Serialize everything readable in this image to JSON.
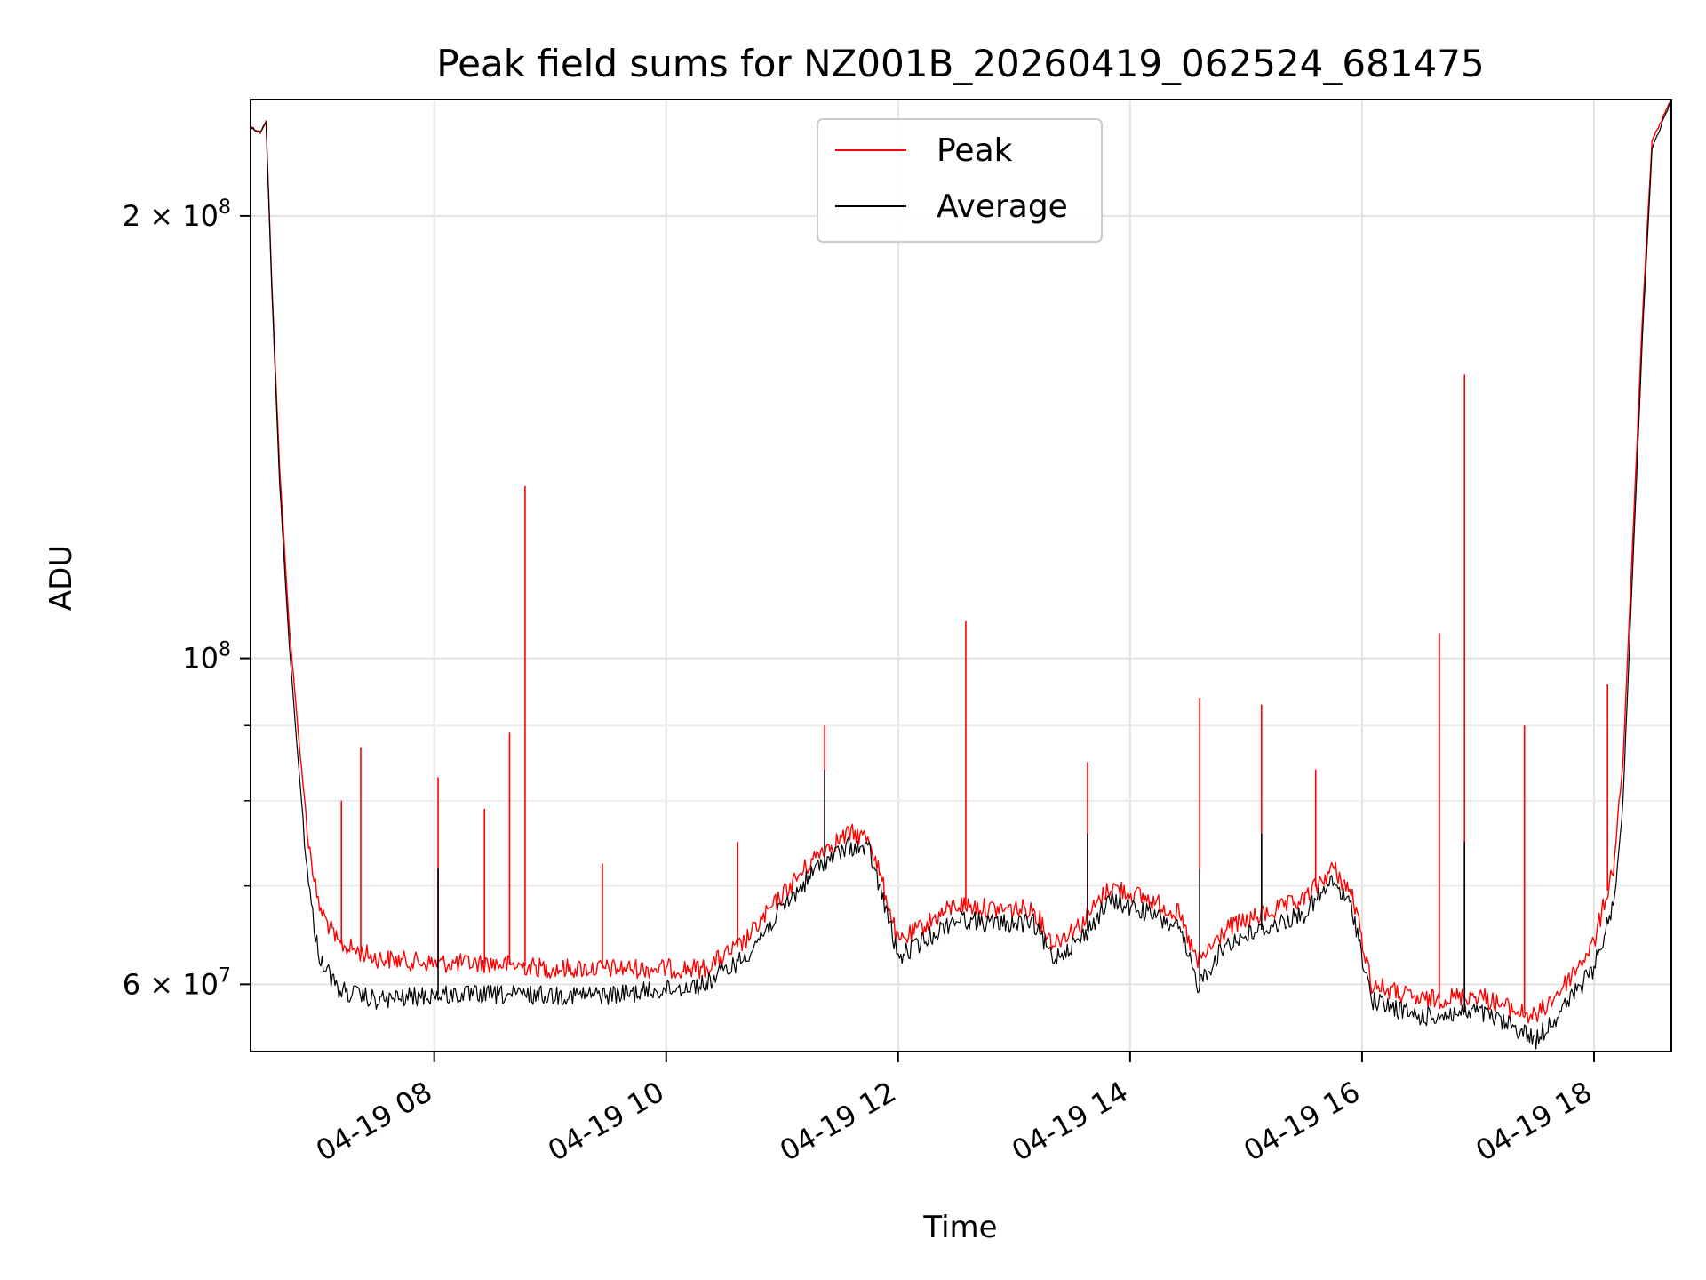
{
  "chart_data": {
    "type": "line",
    "title": "Peak field sums for NZ001B_20260419_062524_681475",
    "xlabel": "Time",
    "ylabel": "ADU",
    "y_scale": "log",
    "ylim": [
      54000000,
      240000000
    ],
    "xlim": [
      "2026-04-19 06:25",
      "2026-04-19 18:40"
    ],
    "x_ticks": [
      {
        "x": "2026-04-19 08:00",
        "label": "04-19 08"
      },
      {
        "x": "2026-04-19 10:00",
        "label": "04-19 10"
      },
      {
        "x": "2026-04-19 12:00",
        "label": "04-19 12"
      },
      {
        "x": "2026-04-19 14:00",
        "label": "04-19 14"
      },
      {
        "x": "2026-04-19 16:00",
        "label": "04-19 16"
      },
      {
        "x": "2026-04-19 18:00",
        "label": "04-19 18"
      }
    ],
    "y_ticks": [
      {
        "y": 60000000,
        "label_base": "6 × 10",
        "label_exp": "7"
      },
      {
        "y": 100000000,
        "label_base": "10",
        "label_exp": "8"
      },
      {
        "y": 200000000,
        "label_base": "2 × 10",
        "label_exp": "8"
      }
    ],
    "y_minor_ticks": [
      70000000,
      80000000,
      90000000
    ],
    "grid": true,
    "legend_position": "top-center",
    "series": [
      {
        "name": "Peak",
        "color": "#ff0000",
        "points": [
          [
            "2026-04-19 06:25",
            230000000
          ],
          [
            "2026-04-19 06:30",
            228000000
          ],
          [
            "2026-04-19 06:33",
            232000000
          ],
          [
            "2026-04-19 06:36",
            180000000
          ],
          [
            "2026-04-19 06:40",
            135000000
          ],
          [
            "2026-04-19 06:45",
            105000000
          ],
          [
            "2026-04-19 06:50",
            88000000
          ],
          [
            "2026-04-19 06:55",
            75000000
          ],
          [
            "2026-04-19 07:00",
            68000000
          ],
          [
            "2026-04-19 07:10",
            64000000
          ],
          [
            "2026-04-19 07:30",
            62500000
          ],
          [
            "2026-04-19 08:00",
            62000000
          ],
          [
            "2026-04-19 08:30",
            62000000
          ],
          [
            "2026-04-19 09:00",
            61500000
          ],
          [
            "2026-04-19 09:30",
            61500000
          ],
          [
            "2026-04-19 10:00",
            61500000
          ],
          [
            "2026-04-19 10:20",
            61500000
          ],
          [
            "2026-04-19 10:40",
            64000000
          ],
          [
            "2026-04-19 11:00",
            69000000
          ],
          [
            "2026-04-19 11:20",
            74000000
          ],
          [
            "2026-04-19 11:35",
            76000000
          ],
          [
            "2026-04-19 11:45",
            75500000
          ],
          [
            "2026-04-19 11:55",
            68000000
          ],
          [
            "2026-04-19 12:00",
            64000000
          ],
          [
            "2026-04-19 12:15",
            66000000
          ],
          [
            "2026-04-19 12:30",
            68000000
          ],
          [
            "2026-04-19 12:50",
            67500000
          ],
          [
            "2026-04-19 13:10",
            67500000
          ],
          [
            "2026-04-19 13:20",
            64000000
          ],
          [
            "2026-04-19 13:35",
            66000000
          ],
          [
            "2026-04-19 13:50",
            70000000
          ],
          [
            "2026-04-19 14:10",
            68500000
          ],
          [
            "2026-04-19 14:25",
            67000000
          ],
          [
            "2026-04-19 14:35",
            62000000
          ],
          [
            "2026-04-19 14:50",
            65500000
          ],
          [
            "2026-04-19 15:10",
            67000000
          ],
          [
            "2026-04-19 15:30",
            68500000
          ],
          [
            "2026-04-19 15:45",
            72000000
          ],
          [
            "2026-04-19 15:55",
            69000000
          ],
          [
            "2026-04-19 16:05",
            60000000
          ],
          [
            "2026-04-19 16:30",
            58500000
          ],
          [
            "2026-04-19 17:00",
            59000000
          ],
          [
            "2026-04-19 17:20",
            57500000
          ],
          [
            "2026-04-19 17:30",
            57000000
          ],
          [
            "2026-04-19 17:45",
            60000000
          ],
          [
            "2026-04-19 18:00",
            64000000
          ],
          [
            "2026-04-19 18:10",
            72000000
          ],
          [
            "2026-04-19 18:15",
            85000000
          ],
          [
            "2026-04-19 18:20",
            120000000
          ],
          [
            "2026-04-19 18:25",
            170000000
          ],
          [
            "2026-04-19 18:30",
            225000000
          ],
          [
            "2026-04-19 18:40",
            240000000
          ]
        ],
        "spikes": [
          [
            "2026-04-19 07:12",
            80000000
          ],
          [
            "2026-04-19 07:22",
            87000000
          ],
          [
            "2026-04-19 08:02",
            83000000
          ],
          [
            "2026-04-19 08:26",
            79000000
          ],
          [
            "2026-04-19 08:39",
            89000000
          ],
          [
            "2026-04-19 08:47",
            131000000
          ],
          [
            "2026-04-19 09:27",
            72500000
          ],
          [
            "2026-04-19 10:37",
            75000000
          ],
          [
            "2026-04-19 11:22",
            90000000
          ],
          [
            "2026-04-19 12:35",
            106000000
          ],
          [
            "2026-04-19 13:38",
            85000000
          ],
          [
            "2026-04-19 14:36",
            94000000
          ],
          [
            "2026-04-19 15:08",
            93000000
          ],
          [
            "2026-04-19 15:36",
            84000000
          ],
          [
            "2026-04-19 16:40",
            104000000
          ],
          [
            "2026-04-19 16:53",
            156000000
          ],
          [
            "2026-04-19 17:24",
            90000000
          ],
          [
            "2026-04-19 18:07",
            96000000
          ]
        ]
      },
      {
        "name": "Average",
        "color": "#000000",
        "points": [
          [
            "2026-04-19 06:25",
            230000000
          ],
          [
            "2026-04-19 06:30",
            228000000
          ],
          [
            "2026-04-19 06:33",
            232000000
          ],
          [
            "2026-04-19 06:36",
            178000000
          ],
          [
            "2026-04-19 06:40",
            132000000
          ],
          [
            "2026-04-19 06:45",
            102000000
          ],
          [
            "2026-04-19 06:50",
            84000000
          ],
          [
            "2026-04-19 06:55",
            70000000
          ],
          [
            "2026-04-19 07:00",
            63000000
          ],
          [
            "2026-04-19 07:10",
            59500000
          ],
          [
            "2026-04-19 07:30",
            58500000
          ],
          [
            "2026-04-19 08:00",
            59000000
          ],
          [
            "2026-04-19 08:30",
            59000000
          ],
          [
            "2026-04-19 09:00",
            59000000
          ],
          [
            "2026-04-19 09:30",
            59000000
          ],
          [
            "2026-04-19 10:00",
            59500000
          ],
          [
            "2026-04-19 10:20",
            60000000
          ],
          [
            "2026-04-19 10:40",
            62500000
          ],
          [
            "2026-04-19 11:00",
            67500000
          ],
          [
            "2026-04-19 11:20",
            72500000
          ],
          [
            "2026-04-19 11:35",
            74500000
          ],
          [
            "2026-04-19 11:45",
            74000000
          ],
          [
            "2026-04-19 11:55",
            66500000
          ],
          [
            "2026-04-19 12:00",
            62500000
          ],
          [
            "2026-04-19 12:15",
            64500000
          ],
          [
            "2026-04-19 12:30",
            66500000
          ],
          [
            "2026-04-19 12:50",
            66000000
          ],
          [
            "2026-04-19 13:10",
            66000000
          ],
          [
            "2026-04-19 13:20",
            62500000
          ],
          [
            "2026-04-19 13:35",
            64500000
          ],
          [
            "2026-04-19 13:50",
            68500000
          ],
          [
            "2026-04-19 14:10",
            67000000
          ],
          [
            "2026-04-19 14:25",
            65500000
          ],
          [
            "2026-04-19 14:35",
            60000000
          ],
          [
            "2026-04-19 14:50",
            64000000
          ],
          [
            "2026-04-19 15:10",
            65500000
          ],
          [
            "2026-04-19 15:30",
            67000000
          ],
          [
            "2026-04-19 15:45",
            70500000
          ],
          [
            "2026-04-19 15:55",
            67500000
          ],
          [
            "2026-04-19 16:05",
            58500000
          ],
          [
            "2026-04-19 16:30",
            57000000
          ],
          [
            "2026-04-19 17:00",
            57500000
          ],
          [
            "2026-04-19 17:20",
            56000000
          ],
          [
            "2026-04-19 17:30",
            55000000
          ],
          [
            "2026-04-19 17:45",
            58000000
          ],
          [
            "2026-04-19 18:00",
            61500000
          ],
          [
            "2026-04-19 18:10",
            68000000
          ],
          [
            "2026-04-19 18:15",
            80000000
          ],
          [
            "2026-04-19 18:20",
            115000000
          ],
          [
            "2026-04-19 18:25",
            165000000
          ],
          [
            "2026-04-19 18:30",
            222000000
          ],
          [
            "2026-04-19 18:40",
            240000000
          ]
        ],
        "spikes": [
          [
            "2026-04-19 08:02",
            72000000
          ],
          [
            "2026-04-19 11:22",
            84000000
          ],
          [
            "2026-04-19 13:38",
            76000000
          ],
          [
            "2026-04-19 14:36",
            72000000
          ],
          [
            "2026-04-19 15:08",
            76000000
          ],
          [
            "2026-04-19 16:53",
            75000000
          ]
        ]
      }
    ]
  }
}
